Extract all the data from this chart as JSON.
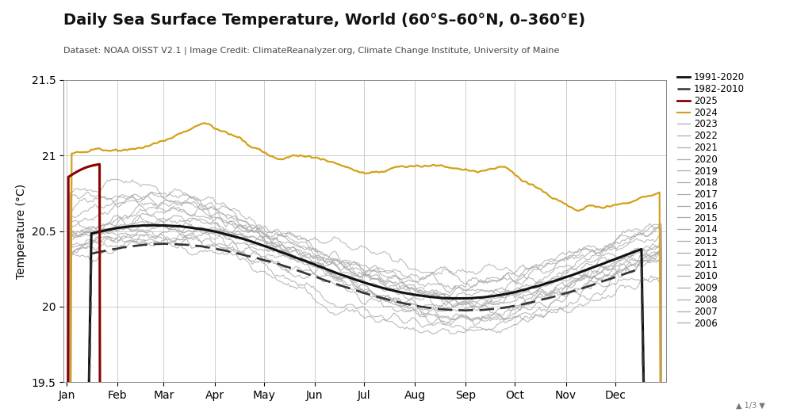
{
  "title": "Daily Sea Surface Temperature, World (60°S–60°N, 0–360°E)",
  "subtitle": "Dataset: NOAA OISST V2.1 | Image Credit: ClimateReanalyzer.org, Climate Change Institute, University of Maine",
  "ylabel": "Temperature (°C)",
  "ylim": [
    19.5,
    21.5
  ],
  "yticks": [
    19.5,
    20.0,
    20.5,
    21.0,
    21.5
  ],
  "months": [
    "Jan",
    "Feb",
    "Mar",
    "Apr",
    "May",
    "Jun",
    "Jul",
    "Aug",
    "Sep",
    "Oct",
    "Nov",
    "Dec"
  ],
  "background_color": "#ffffff",
  "grid_color": "#cccccc",
  "gray_line_color": "#aaaaaa",
  "clim_1991_2020_color": "#111111",
  "clim_1982_2010_color": "#333333",
  "year_2025_color": "#8b0000",
  "year_2024_color": "#d4a017",
  "title_fontsize": 14,
  "subtitle_fontsize": 8,
  "axis_fontsize": 10,
  "legend_fontsize": 8.5
}
